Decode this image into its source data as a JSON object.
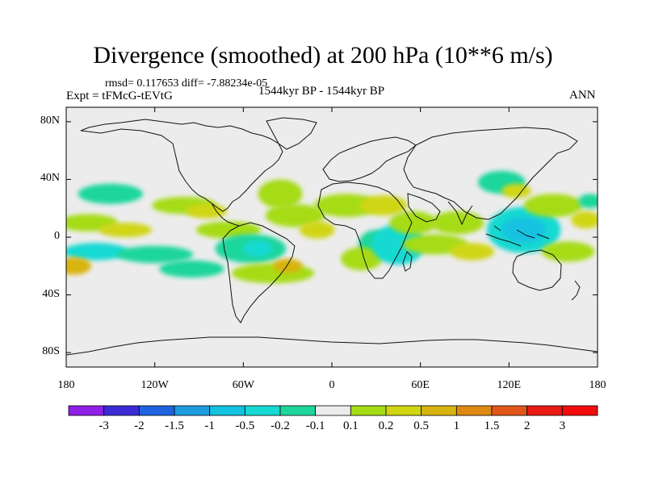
{
  "title": "Divergence (smoothed) at 200 hPa (10**6 m/s)",
  "stats": {
    "rmsd_text": "rmsd= 0.117653  diff= -7.88234e-05"
  },
  "experiment": {
    "label": "Expt = tFMcG-tEVtG"
  },
  "period": {
    "label": "1544kyr BP - 1544kyr BP"
  },
  "season": {
    "label": "ANN"
  },
  "map": {
    "lat_range": [
      -90,
      90
    ],
    "lon_range": [
      -180,
      180
    ],
    "lat_ticks": [
      "80N",
      "40N",
      "0",
      "40S",
      "80S"
    ],
    "lon_ticks": [
      "180",
      "120W",
      "60W",
      "0",
      "60E",
      "120E",
      "180"
    ],
    "background_color": "#ececec"
  },
  "colorbar": {
    "labels": [
      "-3",
      "-2",
      "-1.5",
      "-1",
      "-0.5",
      "-0.2",
      "-0.1",
      "0.1",
      "0.2",
      "0.5",
      "1",
      "1.5",
      "2",
      "3"
    ],
    "colors": [
      "#8f1ee6",
      "#3a2bd6",
      "#1f63e0",
      "#1f9be0",
      "#12c2e0",
      "#16d9d2",
      "#1ed69c",
      "#ececec",
      "#a6dc16",
      "#d0d612",
      "#d8b410",
      "#de8a12",
      "#e2561a",
      "#e81a12",
      "#f20c0c"
    ]
  },
  "fields": {
    "blobs": [
      {
        "lon": -150,
        "lat": 30,
        "rx": 22,
        "ry": 7,
        "c": 6
      },
      {
        "lon": -165,
        "lat": 10,
        "rx": 20,
        "ry": 6,
        "c": 8
      },
      {
        "lon": -140,
        "lat": 5,
        "rx": 18,
        "ry": 5,
        "c": 9
      },
      {
        "lon": -160,
        "lat": -10,
        "rx": 22,
        "ry": 6,
        "c": 5
      },
      {
        "lon": -120,
        "lat": -12,
        "rx": 26,
        "ry": 6,
        "c": 6
      },
      {
        "lon": -175,
        "lat": -20,
        "rx": 12,
        "ry": 6,
        "c": 10
      },
      {
        "lon": -100,
        "lat": 22,
        "rx": 22,
        "ry": 6,
        "c": 8
      },
      {
        "lon": -85,
        "lat": 18,
        "rx": 14,
        "ry": 5,
        "c": 9
      },
      {
        "lon": -70,
        "lat": 5,
        "rx": 22,
        "ry": 6,
        "c": 8
      },
      {
        "lon": -55,
        "lat": -8,
        "rx": 24,
        "ry": 10,
        "c": 6
      },
      {
        "lon": -50,
        "lat": -8,
        "rx": 10,
        "ry": 6,
        "c": 5
      },
      {
        "lon": -95,
        "lat": -22,
        "rx": 22,
        "ry": 6,
        "c": 6
      },
      {
        "lon": -35,
        "lat": 30,
        "rx": 15,
        "ry": 10,
        "c": 8
      },
      {
        "lon": -25,
        "lat": 15,
        "rx": 20,
        "ry": 8,
        "c": 8
      },
      {
        "lon": -40,
        "lat": -25,
        "rx": 28,
        "ry": 7,
        "c": 8
      },
      {
        "lon": -30,
        "lat": -20,
        "rx": 10,
        "ry": 5,
        "c": 10
      },
      {
        "lon": 10,
        "lat": 22,
        "rx": 22,
        "ry": 8,
        "c": 8
      },
      {
        "lon": 35,
        "lat": 22,
        "rx": 16,
        "ry": 7,
        "c": 9
      },
      {
        "lon": 30,
        "lat": -5,
        "rx": 12,
        "ry": 10,
        "c": 6
      },
      {
        "lon": 20,
        "lat": -15,
        "rx": 14,
        "ry": 8,
        "c": 8
      },
      {
        "lon": 45,
        "lat": -5,
        "rx": 18,
        "ry": 14,
        "c": 5
      },
      {
        "lon": 55,
        "lat": 10,
        "rx": 16,
        "ry": 8,
        "c": 8
      },
      {
        "lon": 70,
        "lat": -5,
        "rx": 22,
        "ry": 7,
        "c": 8
      },
      {
        "lon": 85,
        "lat": 10,
        "rx": 18,
        "ry": 8,
        "c": 8
      },
      {
        "lon": 95,
        "lat": -10,
        "rx": 15,
        "ry": 6,
        "c": 9
      },
      {
        "lon": 115,
        "lat": 38,
        "rx": 16,
        "ry": 8,
        "c": 6
      },
      {
        "lon": 125,
        "lat": 32,
        "rx": 10,
        "ry": 5,
        "c": 9
      },
      {
        "lon": 130,
        "lat": 5,
        "rx": 25,
        "ry": 16,
        "c": 5
      },
      {
        "lon": 130,
        "lat": 5,
        "rx": 15,
        "ry": 9,
        "c": 4
      },
      {
        "lon": 150,
        "lat": 22,
        "rx": 20,
        "ry": 8,
        "c": 8
      },
      {
        "lon": 160,
        "lat": -10,
        "rx": 18,
        "ry": 7,
        "c": 8
      },
      {
        "lon": 172,
        "lat": 12,
        "rx": 10,
        "ry": 6,
        "c": 9
      },
      {
        "lon": 175,
        "lat": 25,
        "rx": 8,
        "ry": 5,
        "c": 6
      },
      {
        "lon": -10,
        "lat": 5,
        "rx": 12,
        "ry": 6,
        "c": 9
      }
    ]
  }
}
